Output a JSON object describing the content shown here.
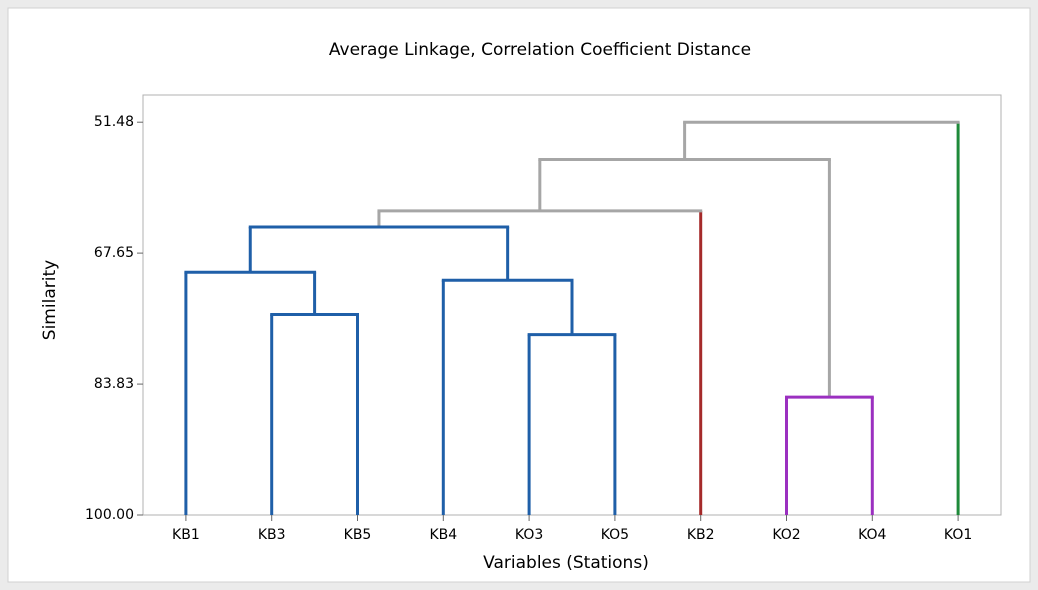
{
  "chart_data": {
    "type": "dendrogram",
    "title": "Average Linkage, Correlation Coefficient Distance",
    "x_label": "Variables (Stations)",
    "y_label": "Similarity",
    "ylim": [
      100,
      48.12
    ],
    "yticks": [
      {
        "value": 100,
        "label": "100.00"
      },
      83.83,
      67.65,
      51.48
    ],
    "tree": {
      "height": 51.48,
      "color": "#a6a6a6",
      "children": [
        {
          "height": 56.08,
          "color": "#a6a6a6",
          "children": [
            {
              "height": 62.43,
              "color": "#a6a6a6",
              "children": [
                {
                  "height": 64.42,
                  "color": "#1f5fa8",
                  "children": [
                    {
                      "height": 70.01,
                      "color": "#1f5fa8",
                      "children": [
                        {
                          "label": "KB1",
                          "color": "#1f5fa8"
                        },
                        {
                          "height": 75.24,
                          "color": "#1f5fa8",
                          "children": [
                            {
                              "label": "KB3",
                              "color": "#1f5fa8"
                            },
                            {
                              "label": "KB5",
                              "color": "#1f5fa8"
                            }
                          ]
                        }
                      ]
                    },
                    {
                      "height": 71.01,
                      "color": "#1f5fa8",
                      "children": [
                        {
                          "label": "KB4",
                          "color": "#1f5fa8"
                        },
                        {
                          "height": 77.72,
                          "color": "#1f5fa8",
                          "children": [
                            {
                              "label": "KO3",
                              "color": "#1f5fa8"
                            },
                            {
                              "label": "KO5",
                              "color": "#1f5fa8"
                            }
                          ]
                        }
                      ]
                    }
                  ]
                },
                {
                  "label": "KB2",
                  "color": "#a52a2a"
                }
              ]
            },
            {
              "height": 85.44,
              "color": "#9b30c0",
              "children": [
                {
                  "label": "KO2",
                  "color": "#9b30c0"
                },
                {
                  "label": "KO4",
                  "color": "#9b30c0"
                }
              ]
            }
          ]
        },
        {
          "label": "KO1",
          "color": "#1e8a3a"
        }
      ]
    }
  }
}
